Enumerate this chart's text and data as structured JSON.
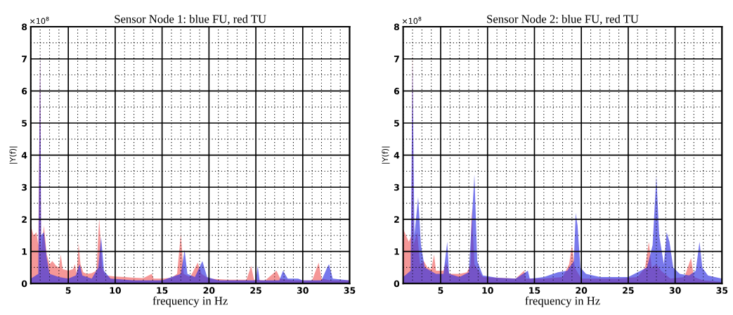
{
  "chart_data": [
    {
      "type": "area",
      "title": "Sensor Node 1: blue FU, red TU",
      "xlabel": "frequency in Hz",
      "ylabel": "|Y(f)|",
      "annotations": [
        "×10$^{8}$"
      ],
      "xlim": [
        1,
        35
      ],
      "xticks": [
        5,
        10,
        15,
        20,
        25,
        30,
        35
      ],
      "ylim": [
        0,
        8
      ],
      "yticks": [
        0,
        1,
        2,
        3,
        4,
        5,
        6,
        7,
        8
      ],
      "grid": true,
      "legend": false,
      "series": [
        {
          "color": "#f06060",
          "x": [
            1.0,
            1.3,
            1.6,
            1.8,
            2.0,
            2.1,
            2.4,
            2.7,
            3.0,
            3.3,
            3.7,
            4.0,
            4.2,
            4.4,
            5.0,
            5.5,
            5.7,
            5.9,
            6.1,
            6.3,
            6.6,
            7.0,
            7.5,
            8.0,
            8.3,
            8.6,
            9.0,
            10,
            11,
            12,
            13,
            13.9,
            14.1,
            15,
            16,
            16.6,
            17.0,
            17.3,
            18,
            18.8,
            19.2,
            20,
            22,
            24,
            24.5,
            24.8,
            26,
            27.2,
            27.6,
            29,
            31,
            31.7,
            32.0,
            33,
            35
          ],
          "values": [
            1.8,
            1.5,
            1.6,
            1.2,
            7.2,
            1.0,
            1.8,
            0.9,
            0.6,
            0.7,
            0.55,
            0.5,
            0.9,
            0.45,
            0.4,
            0.45,
            0.6,
            0.3,
            1.25,
            0.6,
            0.35,
            0.3,
            0.32,
            0.4,
            2.05,
            0.5,
            0.25,
            0.22,
            0.2,
            0.18,
            0.17,
            0.3,
            0.15,
            0.15,
            0.18,
            0.3,
            1.55,
            0.3,
            0.2,
            0.65,
            0.3,
            0.15,
            0.12,
            0.12,
            0.55,
            0.12,
            0.1,
            0.4,
            0.15,
            0.1,
            0.1,
            0.65,
            0.15,
            0.1,
            0.1
          ]
        },
        {
          "color": "#3030e0",
          "x": [
            1.0,
            1.8,
            2.0,
            2.1,
            2.4,
            2.7,
            3,
            4,
            5,
            5.8,
            6.2,
            6.5,
            7.5,
            8.2,
            8.5,
            8.8,
            9.5,
            12,
            15,
            17,
            17.4,
            17.7,
            18.5,
            19.3,
            19.8,
            21,
            25.0,
            25.2,
            25.4,
            27.5,
            27.9,
            28.4,
            29.5,
            30,
            32,
            32.6,
            32.8,
            33.2,
            35
          ],
          "values": [
            0.15,
            0.3,
            7.25,
            1.5,
            1.6,
            0.8,
            0.3,
            0.2,
            0.15,
            0.25,
            0.6,
            0.25,
            0.15,
            0.5,
            1.45,
            0.4,
            0.15,
            0.1,
            0.1,
            0.3,
            1.05,
            0.3,
            0.2,
            0.7,
            0.2,
            0.1,
            0.1,
            0.55,
            0.1,
            0.1,
            0.4,
            0.15,
            0.15,
            0.1,
            0.1,
            0.5,
            0.6,
            0.15,
            0.1
          ]
        }
      ]
    },
    {
      "type": "area",
      "title": "Sensor Node 2: blue FU, red TU",
      "xlabel": "frequency in Hz",
      "ylabel": "|Y(f)|",
      "annotations": [
        "×10$^{8}$"
      ],
      "xlim": [
        1,
        35
      ],
      "xticks": [
        5,
        10,
        15,
        20,
        25,
        30,
        35
      ],
      "ylim": [
        0,
        8
      ],
      "yticks": [
        0,
        1,
        2,
        3,
        4,
        5,
        6,
        7,
        8
      ],
      "grid": true,
      "legend": false,
      "series": [
        {
          "color": "#f06060",
          "x": [
            1.0,
            1.3,
            1.6,
            1.9,
            2.0,
            2.1,
            2.5,
            2.8,
            3.2,
            3.6,
            4.0,
            4.3,
            4.5,
            5.3,
            5.6,
            5.9,
            7,
            7.8,
            8.2,
            8.3,
            8.6,
            9.5,
            11,
            13,
            13.9,
            14.1,
            16,
            18,
            18.7,
            19.0,
            19.3,
            20,
            22,
            24,
            26,
            26.8,
            27.0,
            27.2,
            27.5,
            28,
            28.5,
            29.5,
            31,
            31.7,
            32,
            33,
            35
          ],
          "values": [
            1.7,
            1.5,
            1.3,
            1.5,
            7.4,
            1.2,
            1.6,
            0.6,
            0.7,
            0.5,
            0.45,
            0.9,
            0.4,
            0.4,
            0.65,
            0.3,
            0.3,
            0.35,
            0.6,
            2.35,
            0.6,
            0.2,
            0.18,
            0.15,
            0.4,
            0.15,
            0.15,
            0.2,
            0.6,
            1.2,
            0.5,
            0.15,
            0.15,
            0.15,
            0.2,
            0.5,
            0.9,
            1.3,
            0.5,
            0.6,
            0.4,
            0.15,
            0.2,
            0.8,
            0.2,
            0.1,
            0.05
          ]
        },
        {
          "color": "#3030e0",
          "x": [
            1.0,
            1.8,
            2.0,
            2.2,
            2.6,
            2.9,
            3.3,
            4.5,
            5.3,
            5.7,
            5.9,
            7,
            8,
            8.6,
            8.9,
            9.5,
            11,
            13,
            14.3,
            14.5,
            16,
            17.5,
            18.5,
            19.2,
            19.4,
            19.6,
            19.9,
            20.5,
            22,
            24,
            25,
            26,
            27,
            27.6,
            28.0,
            28.3,
            28.8,
            29.1,
            29.4,
            29.8,
            30.5,
            31.5,
            32.2,
            32.6,
            32.9,
            33.5,
            35
          ],
          "values": [
            0.2,
            0.4,
            6.9,
            1.5,
            2.7,
            1.2,
            0.5,
            0.3,
            0.3,
            1.3,
            0.3,
            0.2,
            0.35,
            3.4,
            0.7,
            0.25,
            0.18,
            0.15,
            0.4,
            0.15,
            0.2,
            0.35,
            0.4,
            0.7,
            2.2,
            1.8,
            0.5,
            0.3,
            0.2,
            0.2,
            0.2,
            0.35,
            0.5,
            1.2,
            3.35,
            1.5,
            0.6,
            1.6,
            1.3,
            0.5,
            0.3,
            0.25,
            0.4,
            1.3,
            0.5,
            0.25,
            0.15
          ]
        }
      ]
    }
  ]
}
